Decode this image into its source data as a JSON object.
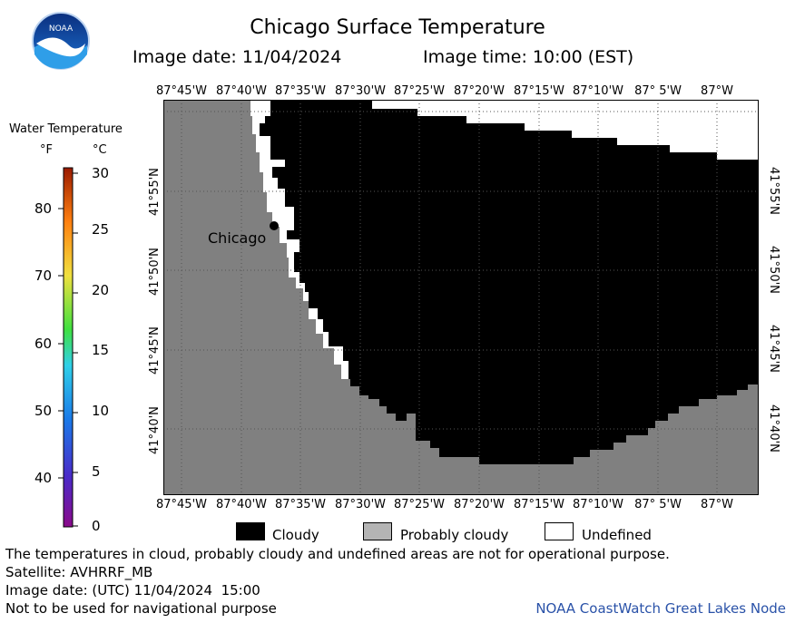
{
  "header": {
    "title": "Chicago Surface Temperature",
    "image_date": "Image date: 11/04/2024",
    "image_time": "Image time: 10:00 (EST)"
  },
  "logo": {
    "text": "NOAA",
    "icon": "noaa-logo-icon"
  },
  "map": {
    "lon_labels": [
      "87°45'W",
      "87°40'W",
      "87°35'W",
      "87°30'W",
      "87°25'W",
      "87°20'W",
      "87°15'W",
      "87°10'W",
      "87° 5'W",
      "87°W"
    ],
    "lat_labels": [
      "41°55'N",
      "41°50'N",
      "41°45'N",
      "41°40'N"
    ],
    "city": "Chicago",
    "colors": {
      "land": "#808080",
      "cloudy": "#000000",
      "undefined": "#ffffff"
    }
  },
  "colorbar": {
    "title": "Water Temperature",
    "unit_f": "°F",
    "unit_c": "°C",
    "f_ticks": [
      "80",
      "70",
      "60",
      "50",
      "40"
    ],
    "c_ticks": [
      "30",
      "25",
      "20",
      "15",
      "10",
      "5",
      "0"
    ]
  },
  "legend": {
    "cloudy": "Cloudy",
    "probably_cloudy": "Probably cloudy",
    "undefined": "Undefined",
    "colors": {
      "cloudy": "#000000",
      "probably_cloudy": "#b4b4b4",
      "undefined": "#ffffff"
    }
  },
  "footer": {
    "note": "The temperatures in cloud, probably cloudy and undefined areas are not for operational purpose.",
    "satellite": "Satellite: AVHRRF_MB",
    "utc_date": "Image date: (UTC) 11/04/2024  15:00",
    "nav": "Not to be used for navigational purpose",
    "credit": "NOAA CoastWatch Great Lakes Node"
  }
}
